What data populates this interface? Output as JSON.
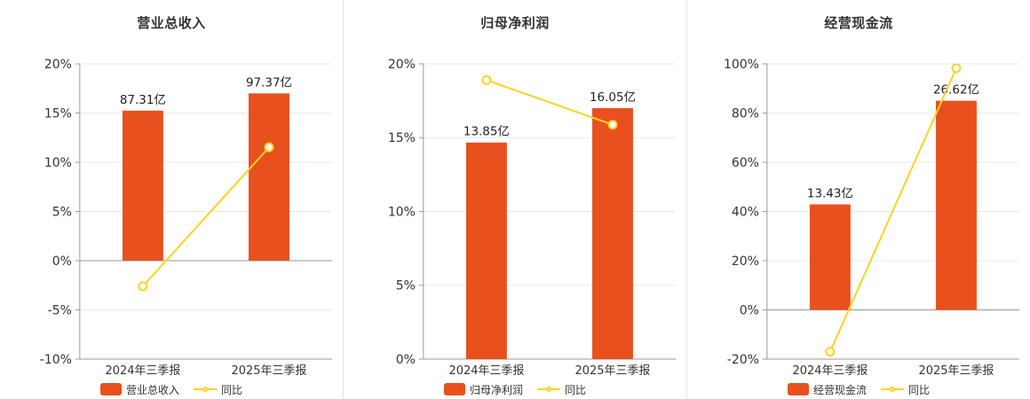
{
  "colors": {
    "bar": "#e8501e",
    "line": "#ffd21e",
    "title": "#333333",
    "axis_text": "#333333",
    "axis_line": "#999999",
    "grid": "#e9e9e9",
    "zero_line": "#999999",
    "bar_label": "#222222",
    "divider": "#e3e3e3",
    "background": "#ffffff"
  },
  "chart_data": [
    {
      "type": "bar",
      "title": "营业总收入",
      "categories": [
        "2024年三季报",
        "2025年三季报"
      ],
      "series": [
        {
          "name": "营业总收入",
          "type": "bar",
          "values": [
            87.31,
            97.37
          ],
          "unit": "亿",
          "labels": [
            "87.31亿",
            "97.37亿"
          ]
        },
        {
          "name": "同比",
          "type": "line",
          "values": [
            -2.6,
            11.52
          ],
          "unit": "%"
        }
      ],
      "ylim": [
        -10,
        20
      ],
      "ytick_step": 5,
      "ytick_labels": [
        "-10%",
        "-5%",
        "0%",
        "5%",
        "10%",
        "15%",
        "20%"
      ],
      "grid": true,
      "legend": [
        "营业总收入",
        "同比"
      ],
      "legend_position": "bottom"
    },
    {
      "type": "bar",
      "title": "归母净利润",
      "categories": [
        "2024年三季报",
        "2025年三季报"
      ],
      "series": [
        {
          "name": "归母净利润",
          "type": "bar",
          "values": [
            13.85,
            16.05
          ],
          "unit": "亿",
          "labels": [
            "13.85亿",
            "16.05亿"
          ]
        },
        {
          "name": "同比",
          "type": "line",
          "values": [
            18.9,
            15.88
          ],
          "unit": "%"
        }
      ],
      "ylim": [
        0,
        20
      ],
      "ytick_step": 5,
      "ytick_labels": [
        "0%",
        "5%",
        "10%",
        "15%",
        "20%"
      ],
      "grid": true,
      "legend": [
        "归母净利润",
        "同比"
      ],
      "legend_position": "bottom"
    },
    {
      "type": "bar",
      "title": "经营现金流",
      "categories": [
        "2024年三季报",
        "2025年三季报"
      ],
      "series": [
        {
          "name": "经营现金流",
          "type": "bar",
          "values": [
            13.43,
            26.62
          ],
          "unit": "亿",
          "labels": [
            "13.43亿",
            "26.62亿"
          ]
        },
        {
          "name": "同比",
          "type": "line",
          "values": [
            -17.0,
            98.21
          ],
          "unit": "%"
        }
      ],
      "ylim": [
        -20,
        100
      ],
      "ytick_step": 20,
      "ytick_labels": [
        "-20%",
        "0%",
        "20%",
        "40%",
        "60%",
        "80%",
        "100%"
      ],
      "grid": true,
      "legend": [
        "经营现金流",
        "同比"
      ],
      "legend_position": "bottom"
    }
  ]
}
